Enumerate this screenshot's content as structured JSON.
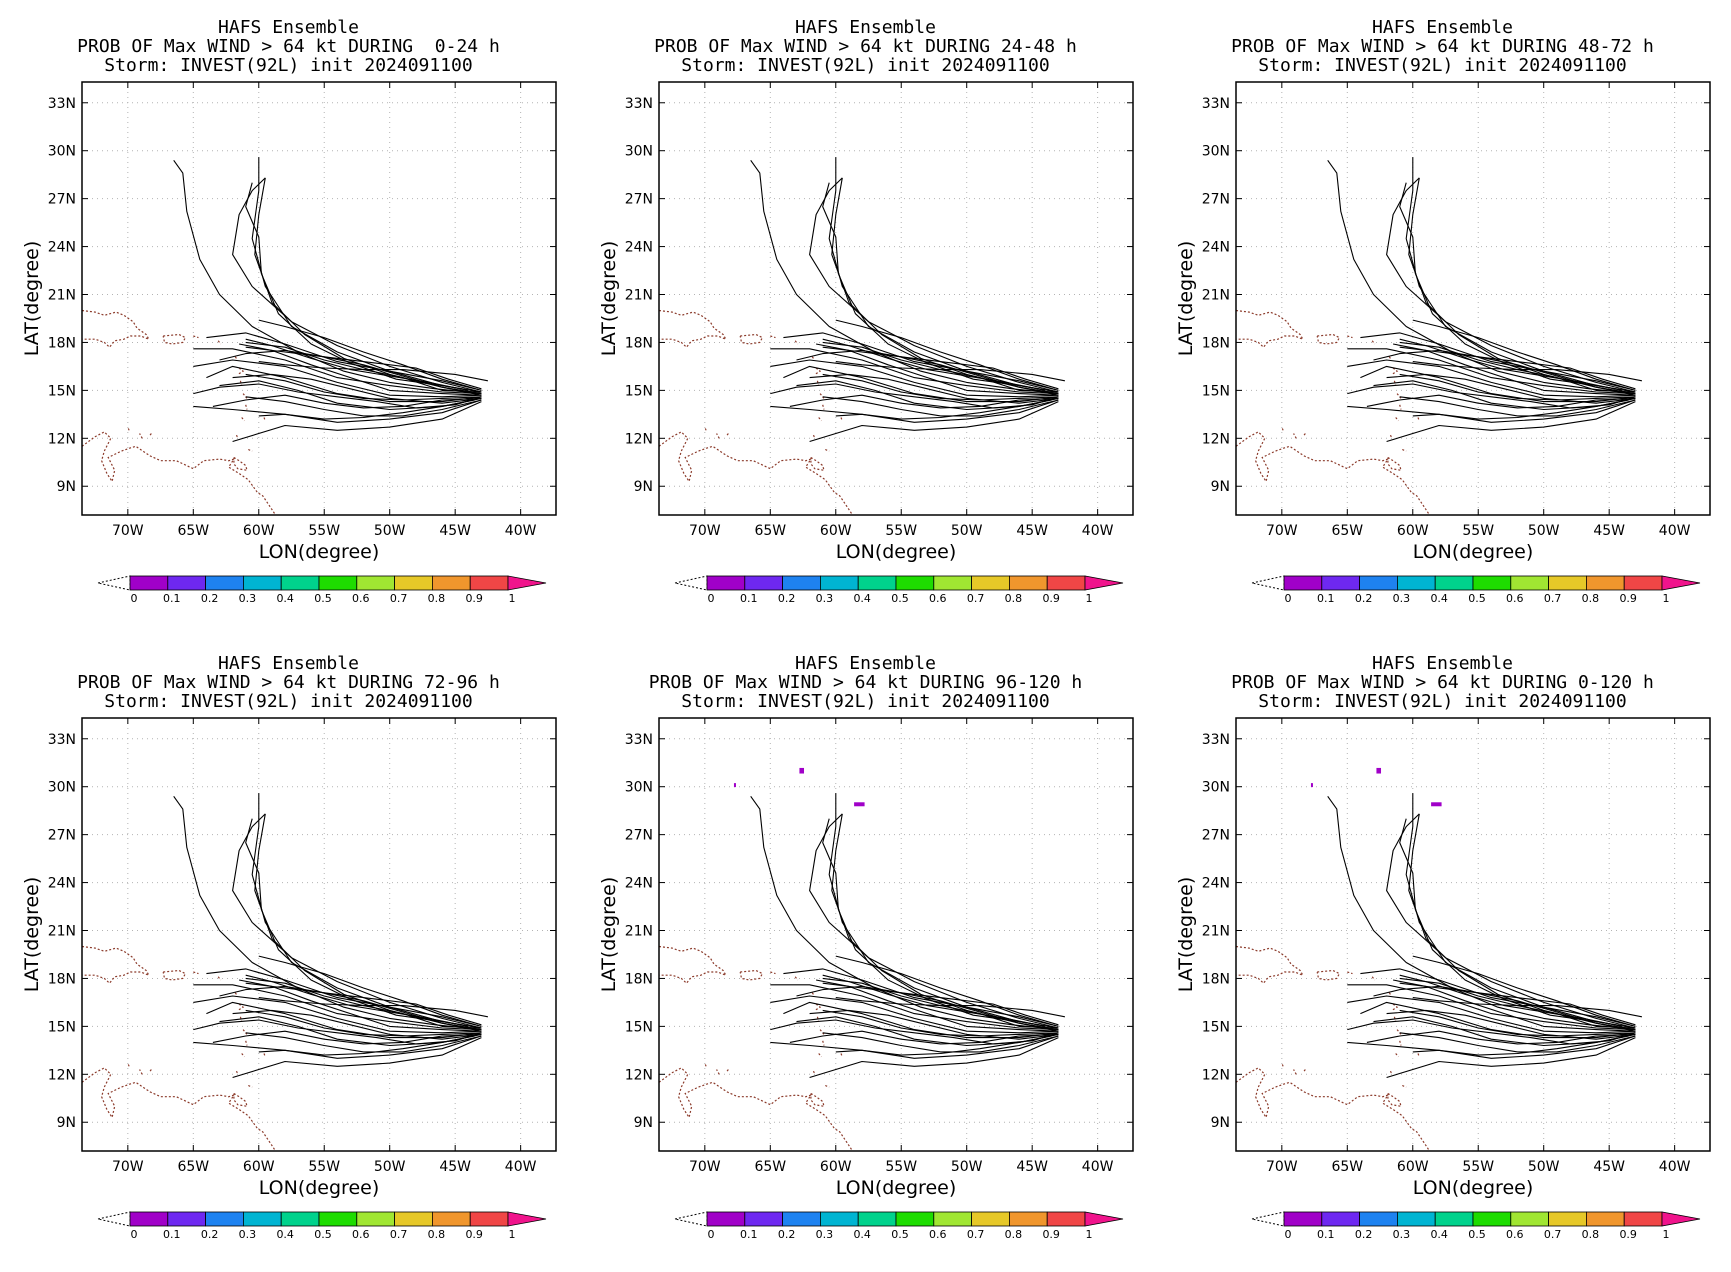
{
  "figure": {
    "panels": [
      {
        "title": [
          "HAFS Ensemble",
          "PROB OF Max WIND > 64 kt DURING  0-24 h",
          "Storm: INVEST(92L) init 2024091100"
        ],
        "blobs": []
      },
      {
        "title": [
          "HAFS Ensemble",
          "PROB OF Max WIND > 64 kt DURING 24-48 h",
          "Storm: INVEST(92L) init 2024091100"
        ],
        "blobs": []
      },
      {
        "title": [
          "HAFS Ensemble",
          "PROB OF Max WIND > 64 kt DURING 48-72 h",
          "Storm: INVEST(92L) init 2024091100"
        ],
        "blobs": []
      },
      {
        "title": [
          "HAFS Ensemble",
          "PROB OF Max WIND > 64 kt DURING 72-96 h",
          "Storm: INVEST(92L) init 2024091100"
        ],
        "blobs": []
      },
      {
        "title": [
          "HAFS Ensemble",
          "PROB OF Max WIND > 64 kt DURING 96-120 h",
          "Storm: INVEST(92L) init 2024091100"
        ],
        "blobs": [
          {
            "lon": -67.7,
            "lat": 30.1,
            "w": 0.15,
            "h": 0.25
          },
          {
            "lon": -62.6,
            "lat": 31.0,
            "w": 0.35,
            "h": 0.35
          },
          {
            "lon": -58.2,
            "lat": 28.9,
            "w": 0.8,
            "h": 0.25
          }
        ]
      },
      {
        "title": [
          "HAFS Ensemble",
          "PROB OF Max WIND > 64 kt DURING 0-120 h",
          "Storm: INVEST(92L) init 2024091100"
        ],
        "blobs": [
          {
            "lon": -67.7,
            "lat": 30.1,
            "w": 0.15,
            "h": 0.25
          },
          {
            "lon": -62.6,
            "lat": 31.0,
            "w": 0.35,
            "h": 0.35
          },
          {
            "lon": -58.2,
            "lat": 28.9,
            "w": 0.8,
            "h": 0.25
          }
        ]
      }
    ],
    "x_axis": {
      "label": "LON(degree)",
      "range": [
        -73.5,
        -37.3
      ],
      "ticks": [
        -70,
        -65,
        -60,
        -55,
        -50,
        -45,
        -40
      ],
      "tick_labels": [
        "70W",
        "65W",
        "60W",
        "55W",
        "50W",
        "45W",
        "40W"
      ]
    },
    "y_axis": {
      "label": "LAT(degree)",
      "range": [
        7.2,
        34.3
      ],
      "ticks": [
        9,
        12,
        15,
        18,
        21,
        24,
        27,
        30,
        33
      ],
      "tick_labels": [
        "9N",
        "12N",
        "15N",
        "18N",
        "21N",
        "24N",
        "27N",
        "30N",
        "33N"
      ]
    },
    "colorbar": {
      "tick_labels": [
        "0",
        "0.1",
        "0.2",
        "0.3",
        "0.4",
        "0.5",
        "0.6",
        "0.7",
        "0.8",
        "0.9",
        "1"
      ],
      "colors": [
        "#a000c8",
        "#6e28f0",
        "#1e82f0",
        "#00b4d2",
        "#00d28c",
        "#1edc00",
        "#a0e632",
        "#e6c828",
        "#f0962d",
        "#f04646"
      ],
      "over_color": "#f0148c"
    },
    "colors": {
      "tracks": "#000000",
      "coastline": "#8b3a2a",
      "grid": "#b4b4b4",
      "blob": "#a000c8"
    },
    "tracks": [
      [
        [
          -43,
          14.9
        ],
        [
          -46,
          15.3
        ],
        [
          -50,
          16.2
        ],
        [
          -54,
          17.4
        ],
        [
          -57.5,
          19.0
        ],
        [
          -59.5,
          21.5
        ],
        [
          -60.5,
          24.5
        ],
        [
          -60.0,
          27.5
        ],
        [
          -60.0,
          29.6
        ]
      ],
      [
        [
          -43,
          14.8
        ],
        [
          -46,
          15.2
        ],
        [
          -50,
          16.0
        ],
        [
          -53.5,
          17.0
        ],
        [
          -56.5,
          18.5
        ],
        [
          -59,
          20.5
        ],
        [
          -60.3,
          23.5
        ],
        [
          -60.0,
          26.0
        ],
        [
          -59.5,
          28.3
        ]
      ],
      [
        [
          -43,
          14.8
        ],
        [
          -46.5,
          15.1
        ],
        [
          -50,
          15.5
        ],
        [
          -53.5,
          16.2
        ],
        [
          -57,
          17.4
        ],
        [
          -60.5,
          19.0
        ],
        [
          -63,
          21.0
        ],
        [
          -64.5,
          23.2
        ],
        [
          -65.5,
          26.2
        ],
        [
          -65.8,
          28.6
        ],
        [
          -66.5,
          29.4
        ]
      ],
      [
        [
          -43,
          14.9
        ],
        [
          -46,
          15.5
        ],
        [
          -50,
          16.5
        ],
        [
          -54,
          17.8
        ],
        [
          -57.5,
          19.3
        ],
        [
          -60.5,
          21.5
        ],
        [
          -62.0,
          23.5
        ],
        [
          -61.5,
          26.0
        ],
        [
          -60.5,
          27.5
        ],
        [
          -59.5,
          28.3
        ]
      ],
      [
        [
          -43,
          14.9
        ],
        [
          -46,
          15.3
        ],
        [
          -49.5,
          15.7
        ],
        [
          -53,
          16.7
        ],
        [
          -56,
          17.9
        ],
        [
          -58.5,
          19.8
        ],
        [
          -59.8,
          22.3
        ],
        [
          -60.0,
          24.6
        ],
        [
          -61.0,
          26.5
        ],
        [
          -60.5,
          28.0
        ]
      ],
      [
        [
          -43,
          15.0
        ],
        [
          -46,
          15.6
        ],
        [
          -50,
          16.2
        ],
        [
          -54,
          16.8
        ],
        [
          -58,
          17.9
        ],
        [
          -61,
          18.6
        ],
        [
          -64,
          18.3
        ]
      ],
      [
        [
          -43,
          14.8
        ],
        [
          -46,
          14.9
        ],
        [
          -50,
          15.3
        ],
        [
          -54,
          15.8
        ],
        [
          -58,
          16.9
        ],
        [
          -62,
          17.6
        ],
        [
          -65,
          17.6
        ]
      ],
      [
        [
          -43,
          14.7
        ],
        [
          -46,
          14.6
        ],
        [
          -50,
          14.7
        ],
        [
          -54,
          15.5
        ],
        [
          -58,
          16.5
        ],
        [
          -62,
          16.9
        ],
        [
          -65,
          16.5
        ]
      ],
      [
        [
          -43,
          14.6
        ],
        [
          -46,
          14.3
        ],
        [
          -50,
          14.3
        ],
        [
          -54,
          14.8
        ],
        [
          -58,
          15.8
        ],
        [
          -62,
          16.5
        ],
        [
          -64,
          15.8
        ]
      ],
      [
        [
          -43,
          14.5
        ],
        [
          -46,
          14.0
        ],
        [
          -50,
          13.8
        ],
        [
          -54,
          14.2
        ],
        [
          -57,
          15.0
        ],
        [
          -60,
          15.6
        ],
        [
          -63,
          15.3
        ]
      ],
      [
        [
          -43,
          14.4
        ],
        [
          -46,
          13.6
        ],
        [
          -50,
          13.2
        ],
        [
          -54,
          13.0
        ],
        [
          -58,
          13.5
        ],
        [
          -62,
          13.8
        ],
        [
          -65,
          14.0
        ]
      ],
      [
        [
          -43,
          14.3
        ],
        [
          -46,
          13.2
        ],
        [
          -50,
          12.7
        ],
        [
          -54,
          12.5
        ],
        [
          -58,
          12.8
        ],
        [
          -62,
          11.8
        ]
      ],
      [
        [
          -43,
          14.6
        ],
        [
          -45,
          14.1
        ],
        [
          -48,
          13.9
        ],
        [
          -51,
          14.3
        ],
        [
          -54,
          14.6
        ],
        [
          -57,
          14.9
        ],
        [
          -60,
          15.4
        ],
        [
          -63,
          15.2
        ],
        [
          -65,
          14.8
        ]
      ],
      [
        [
          -43,
          14.7
        ],
        [
          -46,
          14.8
        ],
        [
          -50,
          15.0
        ],
        [
          -53,
          15.8
        ],
        [
          -56,
          16.6
        ],
        [
          -59,
          17.5
        ],
        [
          -61.5,
          17.9
        ]
      ],
      [
        [
          -43,
          14.5
        ],
        [
          -46,
          14.2
        ],
        [
          -50,
          14.5
        ],
        [
          -53,
          15.1
        ],
        [
          -56,
          15.7
        ],
        [
          -59,
          16.0
        ],
        [
          -62,
          15.8
        ]
      ],
      [
        [
          -43,
          15.1
        ],
        [
          -45.5,
          15.7
        ],
        [
          -48,
          16.4
        ],
        [
          -51,
          16.7
        ],
        [
          -55,
          17.1
        ],
        [
          -58,
          17.4
        ],
        [
          -61,
          17.7
        ]
      ],
      [
        [
          -43,
          14.9
        ],
        [
          -46,
          15.0
        ],
        [
          -49,
          15.8
        ],
        [
          -52,
          16.3
        ],
        [
          -55,
          16.9
        ],
        [
          -58,
          17.7
        ],
        [
          -61,
          18.0
        ]
      ],
      [
        [
          -43,
          14.6
        ],
        [
          -46,
          14.5
        ],
        [
          -49,
          14.4
        ],
        [
          -52,
          14.5
        ],
        [
          -55,
          14.9
        ],
        [
          -58,
          15.6
        ],
        [
          -61,
          16.0
        ]
      ],
      [
        [
          -43,
          14.4
        ],
        [
          -46,
          13.8
        ],
        [
          -49,
          13.4
        ],
        [
          -52,
          13.4
        ],
        [
          -55,
          13.8
        ],
        [
          -58,
          14.3
        ],
        [
          -61,
          14.6
        ]
      ],
      [
        [
          -43,
          14.5
        ],
        [
          -46,
          14.4
        ],
        [
          -49,
          14.0
        ],
        [
          -52,
          13.9
        ],
        [
          -55,
          14.2
        ],
        [
          -58,
          14.7
        ],
        [
          -61,
          14.4
        ],
        [
          -63.5,
          14.0
        ]
      ],
      [
        [
          -43,
          14.7
        ],
        [
          -46,
          15.2
        ],
        [
          -49,
          15.9
        ],
        [
          -52,
          16.6
        ],
        [
          -55,
          17.1
        ],
        [
          -58,
          17.5
        ],
        [
          -61,
          17.3
        ],
        [
          -63,
          16.9
        ]
      ],
      [
        [
          -43,
          15.0
        ],
        [
          -46,
          15.7
        ],
        [
          -49,
          16.6
        ],
        [
          -52,
          17.4
        ],
        [
          -55,
          18.3
        ],
        [
          -58,
          19.0
        ],
        [
          -60,
          19.4
        ]
      ],
      [
        [
          -42.5,
          15.6
        ],
        [
          -45,
          16.0
        ],
        [
          -49,
          16.3
        ],
        [
          -52,
          16.3
        ],
        [
          -55,
          16.4
        ],
        [
          -58,
          16.6
        ],
        [
          -60,
          16.8
        ]
      ],
      [
        [
          -44,
          15.0
        ],
        [
          -47,
          15.5
        ],
        [
          -50,
          15.9
        ],
        [
          -53,
          16.3
        ],
        [
          -56,
          17.0
        ],
        [
          -59,
          17.8
        ],
        [
          -61,
          18.2
        ]
      ],
      [
        [
          -43.5,
          14.4
        ],
        [
          -46,
          14.0
        ],
        [
          -49,
          13.6
        ],
        [
          -52,
          13.3
        ],
        [
          -55,
          13.2
        ],
        [
          -58,
          13.5
        ],
        [
          -60,
          13.4
        ]
      ]
    ],
    "coastlines": [
      [
        [
          -73.5,
          20.0
        ],
        [
          -72.5,
          19.9
        ],
        [
          -71.8,
          19.7
        ],
        [
          -70.9,
          19.9
        ],
        [
          -70.3,
          19.7
        ],
        [
          -69.6,
          19.3
        ],
        [
          -69.3,
          18.9
        ],
        [
          -68.6,
          18.5
        ],
        [
          -68.4,
          18.2
        ],
        [
          -69.0,
          18.4
        ],
        [
          -69.8,
          18.4
        ],
        [
          -70.3,
          18.2
        ],
        [
          -71.0,
          18.1
        ],
        [
          -71.4,
          17.7
        ],
        [
          -71.8,
          18.0
        ],
        [
          -72.5,
          18.2
        ],
        [
          -73.5,
          18.2
        ]
      ],
      [
        [
          -67.3,
          18.4
        ],
        [
          -66.1,
          18.5
        ],
        [
          -65.6,
          18.3
        ],
        [
          -65.8,
          18.0
        ],
        [
          -66.6,
          17.9
        ],
        [
          -67.2,
          18.0
        ],
        [
          -67.3,
          18.4
        ]
      ],
      [
        [
          -65.0,
          18.4
        ],
        [
          -64.6,
          18.3
        ]
      ],
      [
        [
          -63.1,
          18.1
        ],
        [
          -62.9,
          17.9
        ]
      ],
      [
        [
          -61.8,
          17.1
        ],
        [
          -61.7,
          17.0
        ]
      ],
      [
        [
          -61.5,
          16.4
        ],
        [
          -61.2,
          16.2
        ],
        [
          -61.6,
          16.0
        ]
      ],
      [
        [
          -61.4,
          15.6
        ],
        [
          -61.3,
          15.3
        ]
      ],
      [
        [
          -61.2,
          14.8
        ],
        [
          -60.9,
          14.5
        ]
      ],
      [
        [
          -61.0,
          14.1
        ],
        [
          -60.9,
          13.8
        ]
      ],
      [
        [
          -61.3,
          13.3
        ],
        [
          -61.1,
          13.1
        ]
      ],
      [
        [
          -59.6,
          13.3
        ],
        [
          -59.5,
          13.1
        ]
      ],
      [
        [
          -61.7,
          12.2
        ],
        [
          -61.6,
          12.0
        ]
      ],
      [
        [
          -60.8,
          11.3
        ],
        [
          -60.5,
          11.2
        ]
      ],
      [
        [
          -61.9,
          10.8
        ],
        [
          -61.5,
          10.6
        ],
        [
          -61.0,
          10.3
        ],
        [
          -60.9,
          10.0
        ],
        [
          -61.6,
          10.1
        ],
        [
          -61.9,
          10.4
        ],
        [
          -61.9,
          10.8
        ]
      ],
      [
        [
          -73.5,
          11.5
        ],
        [
          -72.5,
          12.1
        ],
        [
          -71.8,
          12.4
        ],
        [
          -71.3,
          12.0
        ],
        [
          -71.8,
          11.2
        ],
        [
          -72.0,
          10.6
        ],
        [
          -71.6,
          9.8
        ],
        [
          -71.2,
          9.3
        ],
        [
          -71.0,
          10.0
        ],
        [
          -71.5,
          10.8
        ],
        [
          -70.5,
          11.2
        ],
        [
          -69.8,
          11.4
        ],
        [
          -69.4,
          11.5
        ],
        [
          -68.3,
          10.9
        ],
        [
          -67.5,
          10.6
        ],
        [
          -66.3,
          10.6
        ],
        [
          -65.0,
          10.1
        ],
        [
          -64.2,
          10.6
        ],
        [
          -63.0,
          10.7
        ],
        [
          -62.3,
          10.6
        ],
        [
          -61.9,
          10.7
        ],
        [
          -62.3,
          10.2
        ],
        [
          -61.5,
          9.8
        ],
        [
          -60.8,
          9.4
        ],
        [
          -60.1,
          8.6
        ],
        [
          -59.7,
          8.4
        ],
        [
          -59.2,
          7.8
        ],
        [
          -58.8,
          7.3
        ]
      ],
      [
        [
          -69.9,
          12.5
        ],
        [
          -70.0,
          12.7
        ]
      ],
      [
        [
          -68.9,
          12.0
        ],
        [
          -69.1,
          12.3
        ]
      ],
      [
        [
          -68.3,
          12.2
        ],
        [
          -68.2,
          12.3
        ]
      ]
    ]
  }
}
